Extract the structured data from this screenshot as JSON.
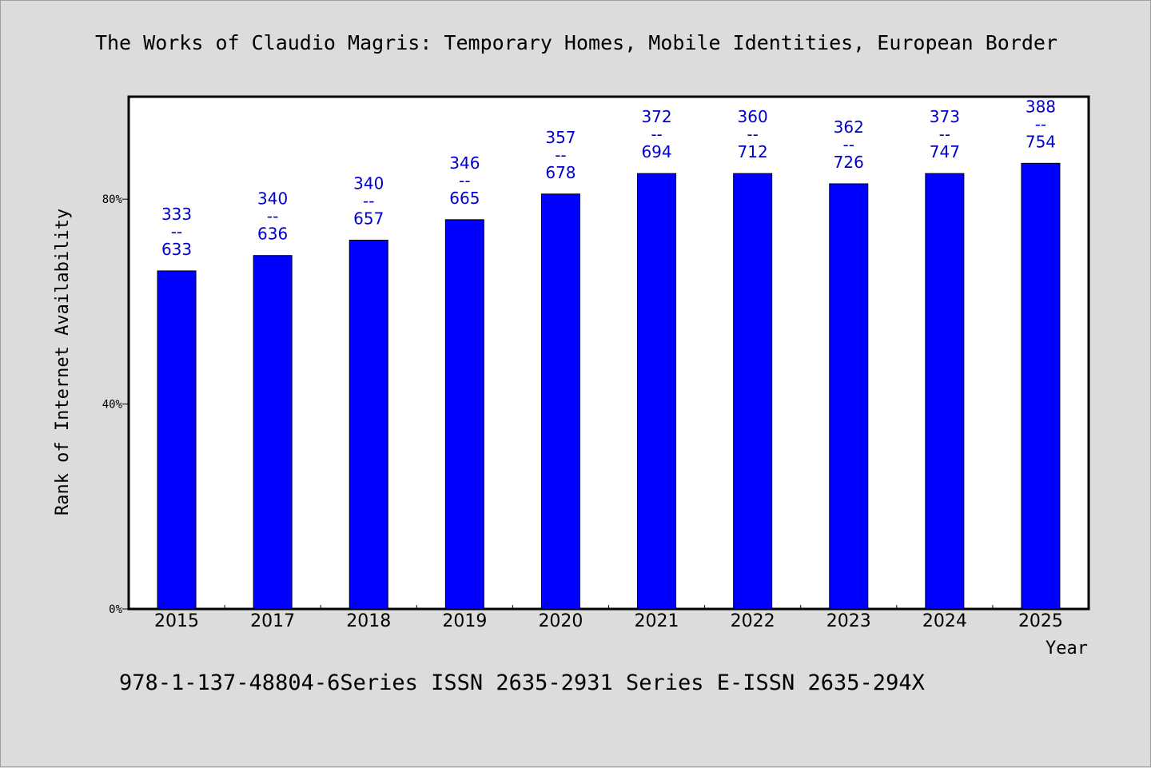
{
  "chart_data": {
    "type": "bar",
    "title": "The Works of Claudio Magris: Temporary Homes, Mobile Identities, European Border",
    "xlabel": "Year",
    "ylabel": "Rank of Internet Availability",
    "categories": [
      "2015",
      "2017",
      "2018",
      "2019",
      "2020",
      "2021",
      "2022",
      "2023",
      "2024",
      "2025"
    ],
    "values": [
      66,
      69,
      72,
      76,
      81,
      85,
      85,
      83,
      85,
      87
    ],
    "data_labels": [
      [
        "333",
        "--",
        "633"
      ],
      [
        "340",
        "--",
        "636"
      ],
      [
        "340",
        "--",
        "657"
      ],
      [
        "346",
        "--",
        "665"
      ],
      [
        "357",
        "--",
        "678"
      ],
      [
        "372",
        "--",
        "694"
      ],
      [
        "360",
        "--",
        "712"
      ],
      [
        "362",
        "--",
        "726"
      ],
      [
        "373",
        "--",
        "747"
      ],
      [
        "388",
        "--",
        "754"
      ]
    ],
    "yticks": [
      0,
      40,
      80
    ],
    "ytick_labels": [
      "0%",
      "40%",
      "80%"
    ],
    "ylim": [
      0,
      100
    ],
    "bar_color": "#0000ff",
    "label_color": "#0000cc",
    "grid": false,
    "legend": "none"
  },
  "footer": "978-1-137-48804-6Series ISSN 2635-2931 Series E-ISSN 2635-294X"
}
